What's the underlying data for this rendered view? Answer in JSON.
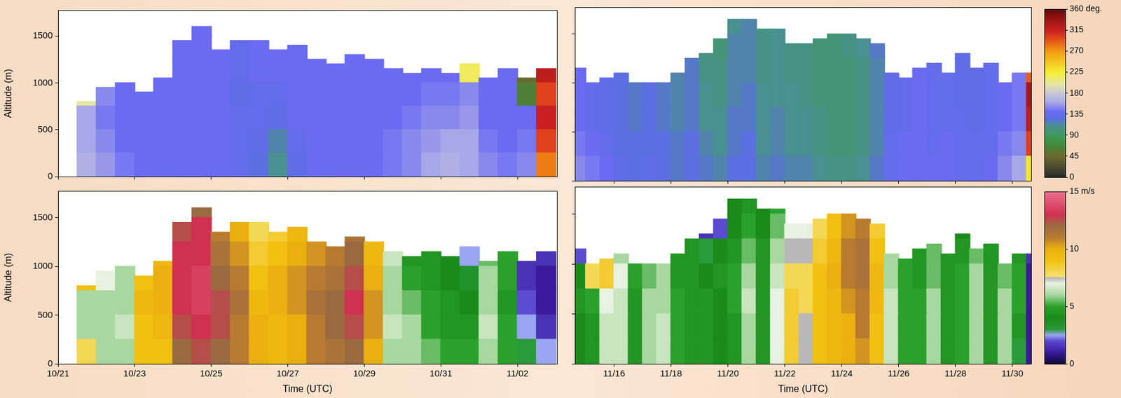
{
  "chart_data": [
    {
      "type": "heatmap",
      "ylabel": "Altitude (m)",
      "tick_labels": "y",
      "grid": false,
      "xlim": [
        0,
        13.03
      ],
      "xticks": [
        {
          "value": 0,
          "label": "10/21"
        },
        {
          "value": 2,
          "label": "10/23"
        },
        {
          "value": 4,
          "label": "10/25"
        },
        {
          "value": 6,
          "label": "10/27"
        },
        {
          "value": 8,
          "label": "10/29"
        },
        {
          "value": 10,
          "label": "10/31"
        },
        {
          "value": 12,
          "label": "11/02"
        }
      ],
      "ylim": [
        0,
        1775
      ],
      "yticks": [
        0,
        500,
        1000,
        1500
      ],
      "altitude_bins": [
        0,
        250,
        500,
        750,
        1000,
        1250,
        1500,
        1750
      ],
      "x": [
        0.75,
        1.25,
        1.75,
        2.25,
        2.75,
        3.25,
        3.75,
        4.25,
        4.75,
        5.25,
        5.75,
        6.25,
        6.75,
        7.25,
        7.75,
        8.25,
        8.75,
        9.25,
        9.75,
        10.25,
        10.75,
        11.25,
        11.75,
        12.25,
        12.75
      ],
      "top_altitude": [
        800,
        950,
        1000,
        900,
        1050,
        1450,
        1600,
        1350,
        1450,
        1450,
        1350,
        1400,
        1250,
        1200,
        1300,
        1250,
        1150,
        1100,
        1150,
        1100,
        1200,
        1050,
        1150,
        1050,
        1150
      ],
      "values": [
        [
          165,
          160,
          160,
          200
        ],
        [
          155,
          150,
          145,
          150
        ],
        [
          145,
          140,
          140,
          140
        ],
        [
          140,
          140,
          140,
          140
        ],
        [
          140,
          140,
          140,
          140,
          140
        ],
        [
          140,
          140,
          140,
          140,
          140,
          140
        ],
        [
          140,
          140,
          140,
          140,
          140,
          140,
          140
        ],
        [
          140,
          140,
          140,
          140,
          140,
          140
        ],
        [
          135,
          135,
          135,
          130,
          135,
          135
        ],
        [
          125,
          130,
          135,
          135,
          140,
          140
        ],
        [
          110,
          115,
          130,
          135,
          140,
          140
        ],
        [
          130,
          135,
          140,
          140,
          140,
          140
        ],
        [
          140,
          140,
          140,
          140,
          140
        ],
        [
          140,
          140,
          140,
          140,
          140
        ],
        [
          140,
          140,
          140,
          140,
          140,
          140
        ],
        [
          140,
          140,
          140,
          140,
          140
        ],
        [
          145,
          145,
          140,
          140,
          140
        ],
        [
          150,
          150,
          145,
          140,
          140
        ],
        [
          160,
          155,
          150,
          145,
          140
        ],
        [
          165,
          160,
          150,
          145,
          140
        ],
        [
          160,
          160,
          155,
          150,
          215
        ],
        [
          150,
          145,
          140,
          140,
          140
        ],
        [
          145,
          140,
          140,
          140,
          140
        ],
        [
          150,
          145,
          140,
          60,
          45
        ],
        [
          280,
          300,
          315,
          300,
          320
        ]
      ]
    },
    {
      "type": "heatmap",
      "tick_labels": false,
      "grid": false,
      "xlim": [
        0.62,
        16.66
      ],
      "xticks": [
        {
          "value": 2,
          "label": "11/16"
        },
        {
          "value": 4,
          "label": "11/18"
        },
        {
          "value": 6,
          "label": "11/20"
        },
        {
          "value": 8,
          "label": "11/22"
        },
        {
          "value": 10,
          "label": "11/24"
        },
        {
          "value": 12,
          "label": "11/26"
        },
        {
          "value": 14,
          "label": "11/28"
        },
        {
          "value": 16,
          "label": "11/30"
        }
      ],
      "ylim": [
        0,
        1775
      ],
      "yticks": [
        0,
        500,
        1000,
        1500
      ],
      "altitude_bins": [
        0,
        250,
        500,
        750,
        1000,
        1250,
        1500,
        1750
      ],
      "x": [
        0.75,
        1.25,
        1.75,
        2.25,
        2.75,
        3.25,
        3.75,
        4.25,
        4.75,
        5.25,
        5.75,
        6.25,
        6.75,
        7.25,
        7.75,
        8.25,
        8.75,
        9.25,
        9.75,
        10.25,
        10.75,
        11.25,
        11.75,
        12.25,
        12.75,
        13.25,
        13.75,
        14.25,
        14.75,
        15.25,
        15.75,
        16.25,
        16.75
      ],
      "top_altitude": [
        1150,
        1000,
        1050,
        1100,
        1000,
        1000,
        1000,
        1100,
        1250,
        1300,
        1450,
        1650,
        1650,
        1550,
        1550,
        1400,
        1400,
        1450,
        1500,
        1500,
        1450,
        1400,
        1100,
        1050,
        1150,
        1200,
        1100,
        1300,
        1150,
        1200,
        1000,
        1100,
        1100
      ],
      "values": [
        [
          150,
          145,
          140,
          140,
          140
        ],
        [
          145,
          140,
          135,
          135
        ],
        [
          140,
          135,
          130,
          130,
          130
        ],
        [
          130,
          125,
          125,
          125,
          125
        ],
        [
          125,
          125,
          120,
          120
        ],
        [
          130,
          125,
          125,
          125
        ],
        [
          125,
          125,
          120,
          120
        ],
        [
          120,
          120,
          115,
          115,
          115
        ],
        [
          125,
          125,
          120,
          120,
          120
        ],
        [
          120,
          115,
          110,
          110,
          105,
          105
        ],
        [
          115,
          110,
          110,
          105,
          105,
          100
        ],
        [
          125,
          120,
          120,
          115,
          115,
          115,
          110
        ],
        [
          125,
          125,
          120,
          120,
          115,
          115,
          115
        ],
        [
          115,
          110,
          110,
          110,
          105,
          105,
          105
        ],
        [
          120,
          115,
          115,
          110,
          110,
          110,
          110
        ],
        [
          115,
          110,
          110,
          110,
          105,
          105
        ],
        [
          115,
          110,
          110,
          105,
          105,
          105
        ],
        [
          110,
          105,
          105,
          100,
          100,
          100
        ],
        [
          105,
          100,
          100,
          100,
          100,
          100
        ],
        [
          105,
          100,
          100,
          100,
          100,
          105
        ],
        [
          110,
          105,
          105,
          105,
          105,
          110
        ],
        [
          120,
          115,
          115,
          115,
          115,
          120
        ],
        [
          135,
          135,
          130,
          130,
          130
        ],
        [
          140,
          140,
          135,
          135,
          135
        ],
        [
          140,
          140,
          140,
          140,
          140
        ],
        [
          140,
          135,
          135,
          135,
          135
        ],
        [
          140,
          140,
          135,
          135,
          135
        ],
        [
          135,
          135,
          135,
          130,
          130,
          130
        ],
        [
          135,
          135,
          130,
          130,
          130
        ],
        [
          140,
          135,
          135,
          135,
          135
        ],
        [
          150,
          145,
          140,
          140
        ],
        [
          160,
          150,
          145,
          145,
          145
        ],
        [
          230,
          300,
          320,
          330,
          290
        ]
      ],
      "colorbar": {
        "range": [
          0,
          360
        ],
        "ticks": [
          0,
          45,
          90,
          135,
          180,
          225,
          270,
          315,
          {
            "value": 360,
            "label": "360 deg."
          }
        ]
      }
    },
    {
      "type": "heatmap",
      "ylabel": "Altitude (m)",
      "xlabel": "Time (UTC)",
      "tick_labels": true,
      "grid": false,
      "xlim": [
        0,
        13.03
      ],
      "xticks": [
        {
          "value": 0,
          "label": "10/21"
        },
        {
          "value": 2,
          "label": "10/23"
        },
        {
          "value": 4,
          "label": "10/25"
        },
        {
          "value": 6,
          "label": "10/27"
        },
        {
          "value": 8,
          "label": "10/29"
        },
        {
          "value": 10,
          "label": "10/31"
        },
        {
          "value": 12,
          "label": "11/02"
        }
      ],
      "ylim": [
        0,
        1775
      ],
      "yticks": [
        0,
        500,
        1000,
        1500
      ],
      "altitude_bins": [
        0,
        250,
        500,
        750,
        1000,
        1250,
        1500,
        1750
      ],
      "x": [
        0.75,
        1.25,
        1.75,
        2.25,
        2.75,
        3.25,
        3.75,
        4.25,
        4.75,
        5.25,
        5.75,
        6.25,
        6.75,
        7.25,
        7.75,
        8.25,
        8.75,
        9.25,
        9.75,
        10.25,
        10.75,
        11.25,
        11.75,
        12.25,
        12.75
      ],
      "top_altitude": [
        800,
        950,
        1000,
        900,
        1050,
        1450,
        1600,
        1350,
        1450,
        1450,
        1350,
        1400,
        1250,
        1200,
        1300,
        1250,
        1150,
        1100,
        1150,
        1100,
        1200,
        1050,
        1150,
        1050,
        1150
      ],
      "values": [
        [
          8,
          6,
          6,
          9
        ],
        [
          6,
          6,
          6,
          7
        ],
        [
          6,
          6.5,
          6,
          6
        ],
        [
          9,
          9,
          9.5,
          9
        ],
        [
          9,
          9.5,
          10,
          10,
          9.5
        ],
        [
          12,
          12.5,
          13,
          13,
          13,
          12.5
        ],
        [
          12.5,
          13,
          13.5,
          13.5,
          13,
          13,
          12
        ],
        [
          12,
          12.5,
          12.5,
          12,
          11.5,
          11
        ],
        [
          11,
          11,
          11.5,
          11,
          10.5,
          10
        ],
        [
          10,
          10,
          9.5,
          9,
          8.5,
          8
        ],
        [
          9.5,
          9.5,
          10,
          10,
          9,
          8.5
        ],
        [
          10,
          10,
          10.5,
          10.5,
          10,
          9.5
        ],
        [
          11,
          11,
          11.5,
          11,
          10.5
        ],
        [
          11.5,
          12,
          12,
          11.5,
          11
        ],
        [
          12,
          12.5,
          13,
          12.5,
          12,
          11.5
        ],
        [
          10,
          10.5,
          10.5,
          10,
          9.5
        ],
        [
          6,
          6.5,
          6,
          6,
          6.5
        ],
        [
          6,
          6,
          5.5,
          5,
          4.5
        ],
        [
          5.5,
          5,
          5,
          4.5,
          4.5
        ],
        [
          5,
          4.5,
          4.5,
          4,
          4
        ],
        [
          5,
          4.5,
          4,
          3.5,
          2.5
        ],
        [
          6,
          6.5,
          6,
          6,
          5.5
        ],
        [
          5,
          5,
          4.5,
          5,
          5
        ],
        [
          3,
          2.5,
          2,
          1.5,
          1.5
        ],
        [
          2.5,
          1.5,
          1,
          1,
          1.5
        ]
      ]
    },
    {
      "type": "heatmap",
      "xlabel": "Time (UTC)",
      "tick_labels": "x",
      "grid": false,
      "xlim": [
        0.62,
        16.66
      ],
      "xticks": [
        {
          "value": 2,
          "label": "11/16"
        },
        {
          "value": 4,
          "label": "11/18"
        },
        {
          "value": 6,
          "label": "11/20"
        },
        {
          "value": 8,
          "label": "11/22"
        },
        {
          "value": 10,
          "label": "11/24"
        },
        {
          "value": 12,
          "label": "11/26"
        },
        {
          "value": 14,
          "label": "11/28"
        },
        {
          "value": 16,
          "label": "11/30"
        }
      ],
      "ylim": [
        0,
        1775
      ],
      "yticks": [
        0,
        500,
        1000,
        1500
      ],
      "altitude_bins": [
        0,
        250,
        500,
        750,
        1000,
        1250,
        1500,
        1750
      ],
      "x": [
        0.75,
        1.25,
        1.75,
        2.25,
        2.75,
        3.25,
        3.75,
        4.25,
        4.75,
        5.25,
        5.75,
        6.25,
        6.75,
        7.25,
        7.75,
        8.25,
        8.75,
        9.25,
        9.75,
        10.25,
        10.75,
        11.25,
        11.75,
        12.25,
        12.75,
        13.25,
        13.75,
        14.25,
        14.75,
        15.25,
        15.75,
        16.25,
        16.75
      ],
      "top_altitude": [
        1150,
        1000,
        1050,
        1100,
        1000,
        1000,
        1000,
        1100,
        1250,
        1300,
        1450,
        1650,
        1650,
        1550,
        1550,
        1400,
        1400,
        1450,
        1500,
        1500,
        1450,
        1400,
        1100,
        1050,
        1150,
        1200,
        1100,
        1300,
        1150,
        1200,
        1000,
        1100,
        1100
      ],
      "values": [
        [
          4,
          4,
          4.5,
          4,
          2
        ],
        [
          4.5,
          4.5,
          5,
          8
        ],
        [
          6.5,
          6.5,
          7,
          8.5,
          8.5
        ],
        [
          6.5,
          6.5,
          6.5,
          7,
          6
        ],
        [
          4.5,
          4.5,
          4.5,
          5
        ],
        [
          6,
          6,
          6,
          5.5
        ],
        [
          6.5,
          6.5,
          6,
          6
        ],
        [
          5,
          5,
          5,
          4.5,
          4.5
        ],
        [
          4.5,
          4.5,
          4.5,
          4.5,
          4.5
        ],
        [
          4.5,
          4.5,
          4.5,
          4,
          3,
          1.5
        ],
        [
          4,
          4,
          4,
          4.5,
          4,
          2
        ],
        [
          4.5,
          4.5,
          5,
          5,
          4.5,
          4,
          4
        ],
        [
          6,
          6,
          6.5,
          6,
          5.5,
          5,
          4.5
        ],
        [
          4.5,
          4.5,
          4.5,
          4.5,
          4.5,
          4,
          4
        ],
        [
          7,
          7,
          7,
          6.5,
          6,
          5.5,
          5
        ],
        [
          8.5,
          8.5,
          8.5,
          8,
          7.5,
          7
        ],
        [
          7.5,
          7.5,
          8,
          8,
          7.5,
          7
        ],
        [
          9,
          9,
          9,
          9,
          8.5,
          8
        ],
        [
          9.5,
          9.5,
          9.5,
          10,
          9.5,
          9
        ],
        [
          10,
          10,
          10.5,
          11,
          11,
          10.5
        ],
        [
          10.5,
          11,
          11,
          11.5,
          11.5,
          11
        ],
        [
          9,
          9,
          9.5,
          9.5,
          9,
          8.5
        ],
        [
          6.5,
          6.5,
          6.5,
          6,
          6
        ],
        [
          5,
          5,
          5,
          5,
          5
        ],
        [
          5,
          5,
          5,
          4.5,
          4.5
        ],
        [
          6,
          6,
          6,
          5.5,
          5.5
        ],
        [
          4.5,
          4.5,
          4.5,
          4.5,
          4.5
        ],
        [
          5,
          5,
          5,
          5,
          4.5,
          4
        ],
        [
          6,
          6,
          6,
          6,
          5.5
        ],
        [
          4.5,
          4.5,
          4.5,
          4.5,
          4.5
        ],
        [
          6,
          6,
          6,
          5.5
        ],
        [
          3,
          4.5,
          5,
          5,
          4.5
        ],
        [
          1,
          1,
          1,
          1,
          1.5
        ]
      ],
      "colorbar": {
        "range": [
          0,
          15
        ],
        "ticks": [
          0,
          5,
          10,
          {
            "value": 15,
            "label": "15 m/s"
          }
        ]
      }
    }
  ]
}
